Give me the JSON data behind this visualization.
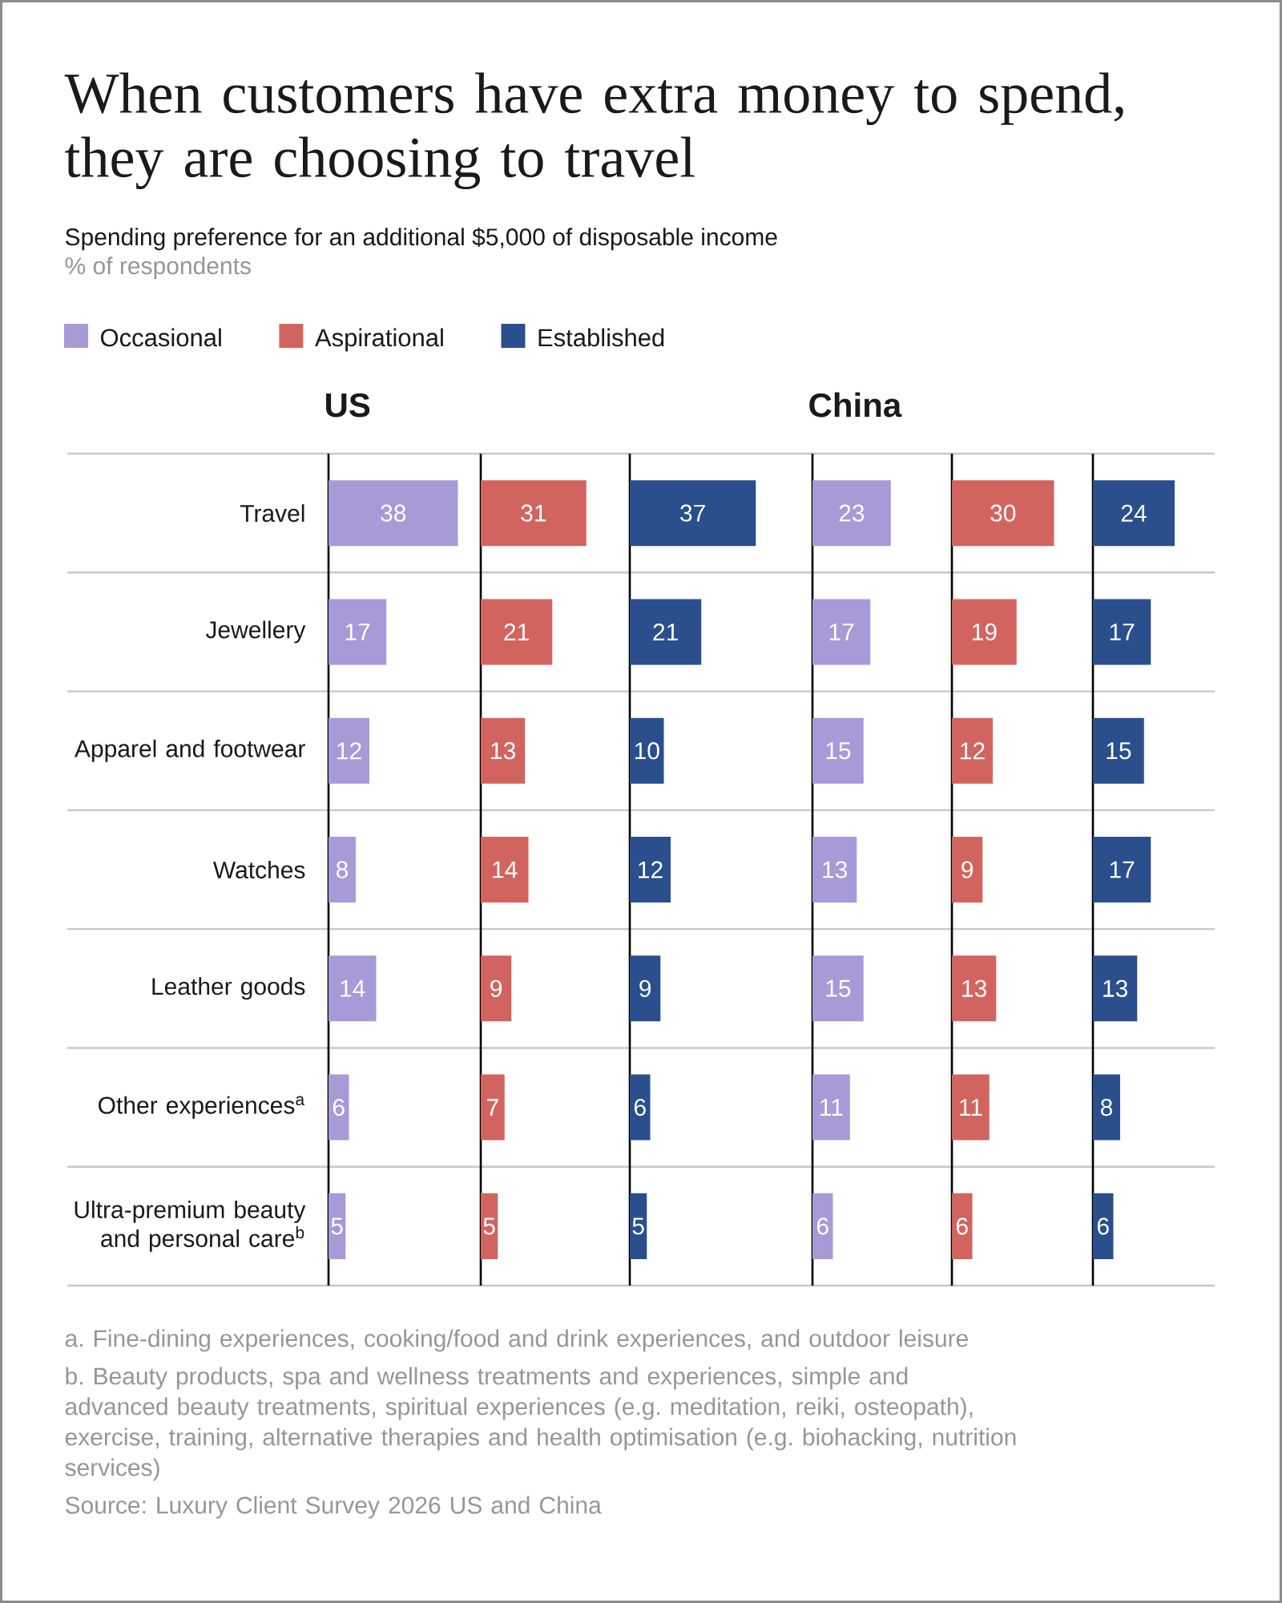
{
  "chart_data": [
    {
      "type": "other",
      "title": "When customers have extra money to spend, they are choosing to travel",
      "subtitle": "Spending preference for an additional $5,000 of disposable income",
      "annotations": [
        "a. Fine-dining experiences, cooking/food and drink experiences, and outdoor leisure",
        "b. Beauty products, spa and wellness treatments and experiences, simple and advanced beauty treatments, spiritual experiences (e.g. meditation, reiki, osteopath), exercise, training, alternative therapies and health optimisation (e.g. biohacking, nutrition services)",
        "Source: Luxury Client Survey 2026 US and China"
      ]
    },
    {
      "type": "bar",
      "orientation": "horizontal",
      "title": "US",
      "xlabel": "% of respondents",
      "categories": [
        "Travel",
        "Jewellery",
        "Apparel and footwear",
        "Watches",
        "Leather goods",
        "Other experiences$^{a}$",
        "Ultra-premium beauty and personal care$^{b}$"
      ],
      "series": [
        {
          "name": "Occasional",
          "color": "#a89ad6",
          "values": [
            38,
            17,
            12,
            8,
            14,
            6,
            5
          ]
        }
      ],
      "data_labels": true,
      "grid": "y",
      "legend": "top"
    },
    {
      "type": "bar",
      "orientation": "horizontal",
      "categories": [
        null,
        null,
        null,
        null,
        null,
        null,
        null
      ],
      "series": [
        {
          "name": "Aspirational",
          "color": "#d2645f",
          "values": [
            31,
            21,
            13,
            14,
            9,
            7,
            5
          ]
        }
      ],
      "data_labels": true,
      "grid": "y",
      "legend": "top"
    },
    {
      "type": "bar",
      "orientation": "horizontal",
      "categories": [
        null,
        null,
        null,
        null,
        null,
        null,
        null
      ],
      "series": [
        {
          "name": "Established",
          "color": "#2a4f8c",
          "values": [
            37,
            21,
            10,
            12,
            9,
            6,
            5
          ]
        }
      ],
      "data_labels": true,
      "grid": "y",
      "legend": "top"
    },
    {
      "type": "bar",
      "orientation": "horizontal",
      "title": "China",
      "categories": [
        null,
        null,
        null,
        null,
        null,
        null,
        null
      ],
      "series": [
        {
          "color": "#a89ad6",
          "values": [
            23,
            17,
            15,
            13,
            15,
            11,
            6
          ]
        }
      ],
      "data_labels": true,
      "grid": "y"
    },
    {
      "type": "bar",
      "orientation": "horizontal",
      "categories": [
        null,
        null,
        null,
        null,
        null,
        null,
        null
      ],
      "series": [
        {
          "color": "#d2645f",
          "values": [
            30,
            19,
            12,
            9,
            13,
            11,
            6
          ]
        }
      ],
      "data_labels": true,
      "grid": "y"
    },
    {
      "type": "bar",
      "orientation": "horizontal",
      "categories": [
        null,
        null,
        null,
        null,
        null,
        null,
        null
      ],
      "series": [
        {
          "color": "#2a4f8c",
          "values": [
            24,
            17,
            15,
            17,
            13,
            8,
            6
          ]
        }
      ],
      "data_labels": true,
      "grid": "y"
    }
  ]
}
